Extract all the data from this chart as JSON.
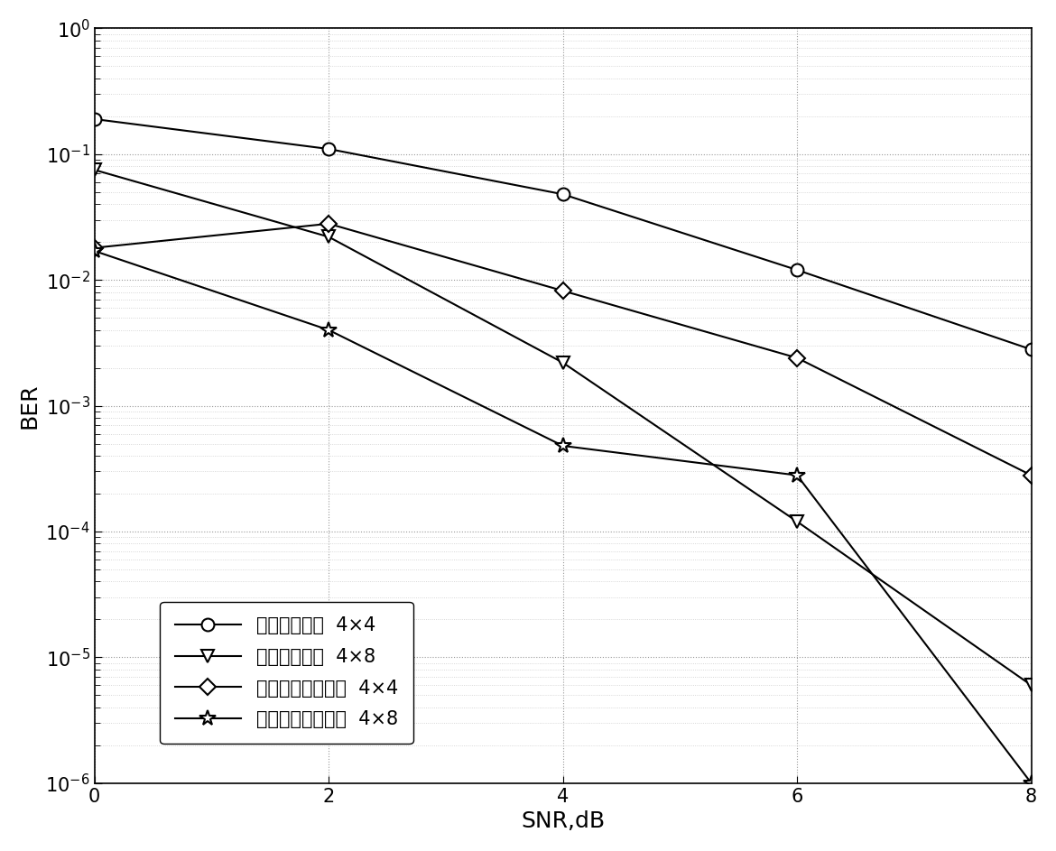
{
  "snr": [
    0,
    2,
    4,
    6,
    8
  ],
  "series": [
    {
      "label": "差分空间调制  4×4",
      "marker": "o",
      "markersize": 10,
      "markerfacecolor": "white",
      "ber": [
        0.19,
        0.11,
        0.048,
        0.012,
        0.0028
      ]
    },
    {
      "label": "差分空间调制  4×8",
      "marker": "v",
      "markersize": 10,
      "markerfacecolor": "white",
      "ber": [
        0.075,
        0.022,
        0.0022,
        0.00012,
        6e-06
      ]
    },
    {
      "label": "差分波束空间调制  4×4",
      "marker": "D",
      "markersize": 9,
      "markerfacecolor": "white",
      "ber": [
        0.018,
        0.028,
        0.0082,
        0.0024,
        0.00028
      ]
    },
    {
      "label": "差分波束空间调制  4×8",
      "marker": "*",
      "markersize": 13,
      "markerfacecolor": "white",
      "ber": [
        0.017,
        0.004,
        0.00048,
        0.00028,
        1e-06
      ]
    }
  ],
  "xlabel": "SNR,dB",
  "ylabel": "BER",
  "xlim": [
    0,
    8
  ],
  "ylim_log": [
    -6,
    0
  ],
  "color": "#000000",
  "background": "#ffffff",
  "grid_major_color": "#999999",
  "grid_minor_color": "#cccccc",
  "xticks": [
    0,
    2,
    4,
    6,
    8
  ]
}
